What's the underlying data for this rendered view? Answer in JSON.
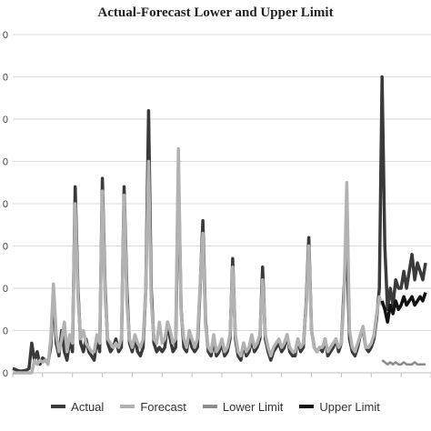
{
  "chart_data": {
    "type": "line",
    "title": "Actual-Forecast Lower and Upper Limit",
    "xlabel": "",
    "ylabel": "",
    "ytick_labels": [
      "0",
      "0",
      "0",
      "0",
      "0",
      "0",
      "0",
      "0",
      "0"
    ],
    "grid": true,
    "legend_position": "bottom",
    "series": [
      {
        "name": "Actual",
        "color": "#3a3a3a",
        "x": [
          1,
          2,
          3,
          4,
          5,
          6,
          7,
          8,
          9,
          10,
          11,
          12,
          13,
          14,
          15,
          16,
          17,
          18,
          19,
          20,
          21,
          22,
          23,
          24,
          25,
          26,
          27,
          28,
          29,
          30,
          31,
          32,
          33,
          34,
          35,
          36,
          37,
          38,
          39,
          40,
          41,
          42,
          43,
          44,
          45,
          46,
          47,
          48,
          49,
          50,
          51,
          52,
          53,
          54,
          55,
          56,
          57,
          58,
          59,
          60,
          61,
          62,
          63,
          64,
          65,
          66,
          67,
          68,
          69,
          70,
          71,
          72,
          73,
          74,
          75,
          76,
          77,
          78,
          79,
          80,
          81,
          82,
          83,
          84,
          85,
          86,
          87,
          88,
          89,
          90,
          91,
          92,
          93,
          94,
          95,
          96,
          97,
          98,
          99,
          100,
          101,
          102,
          103,
          104,
          105,
          106,
          107,
          108,
          109,
          110,
          111,
          112,
          113,
          114,
          115,
          116,
          117,
          118,
          119,
          120,
          121,
          122,
          123,
          124,
          125,
          126,
          127,
          128,
          129,
          130,
          131,
          132,
          133,
          134,
          135,
          136,
          137,
          138,
          139,
          140,
          141,
          142,
          143,
          144,
          145,
          146,
          147,
          148,
          149,
          150,
          151,
          152,
          153
        ],
        "y": [
          0.1,
          0.08,
          0.05,
          0.04,
          0.05,
          0.06,
          0.1,
          0.7,
          0.3,
          0.5,
          0.2,
          0.35,
          0.3,
          0.25,
          0.6,
          1.9,
          0.7,
          0.4,
          1.0,
          0.5,
          0.3,
          0.8,
          0.5,
          4.4,
          2.0,
          0.7,
          0.5,
          0.8,
          0.5,
          0.4,
          0.3,
          0.8,
          0.5,
          4.6,
          2.0,
          0.7,
          0.5,
          0.6,
          0.8,
          0.5,
          0.6,
          4.4,
          2.0,
          0.7,
          0.5,
          0.8,
          0.5,
          0.4,
          0.6,
          2.0,
          6.2,
          2.0,
          0.7,
          0.5,
          0.6,
          0.5,
          0.6,
          1.2,
          0.8,
          0.5,
          0.6,
          4.8,
          1.5,
          0.6,
          0.5,
          0.9,
          0.6,
          0.5,
          0.6,
          2.0,
          3.6,
          1.2,
          0.5,
          0.4,
          0.8,
          0.4,
          0.5,
          0.7,
          0.4,
          0.5,
          0.8,
          2.7,
          0.8,
          0.4,
          0.3,
          0.7,
          0.4,
          0.5,
          0.8,
          0.5,
          0.6,
          0.8,
          2.5,
          0.8,
          0.5,
          0.3,
          0.5,
          0.6,
          0.7,
          0.5,
          0.6,
          0.9,
          0.5,
          0.4,
          0.4,
          0.8,
          0.5,
          0.6,
          1.6,
          3.2,
          1.0,
          0.6,
          0.5,
          0.6,
          0.5,
          0.8,
          0.4,
          0.5,
          0.6,
          0.8,
          0.5,
          0.7,
          2.0,
          3.0,
          0.8,
          0.5,
          0.4,
          0.6,
          0.9,
          1.0,
          0.6,
          0.5,
          0.6,
          0.8,
          1.3,
          2.0,
          7.0,
          3.0,
          1.5,
          2.0,
          1.6,
          2.2,
          2.0,
          2.0,
          2.4,
          2.0,
          2.4,
          2.8,
          2.2,
          2.6,
          2.4,
          2.2,
          2.6
        ]
      },
      {
        "name": "Forecast",
        "color": "#b2b2b2",
        "x": [
          1,
          2,
          3,
          4,
          5,
          6,
          7,
          8,
          9,
          10,
          11,
          12,
          13,
          14,
          15,
          16,
          17,
          18,
          19,
          20,
          21,
          22,
          23,
          24,
          25,
          26,
          27,
          28,
          29,
          30,
          31,
          32,
          33,
          34,
          35,
          36,
          37,
          38,
          39,
          40,
          41,
          42,
          43,
          44,
          45,
          46,
          47,
          48,
          49,
          50,
          51,
          52,
          53,
          54,
          55,
          56,
          57,
          58,
          59,
          60,
          61,
          62,
          63,
          64,
          65,
          66,
          67,
          68,
          69,
          70,
          71,
          72,
          73,
          74,
          75,
          76,
          77,
          78,
          79,
          80,
          81,
          82,
          83,
          84,
          85,
          86,
          87,
          88,
          89,
          90,
          91,
          92,
          93,
          94,
          95,
          96,
          97,
          98,
          99,
          100,
          101,
          102,
          103,
          104,
          105,
          106,
          107,
          108,
          109,
          110,
          111,
          112,
          113,
          114,
          115,
          116,
          117,
          118,
          119,
          120,
          121,
          122,
          123,
          124,
          125,
          126,
          127,
          128,
          129,
          130,
          131,
          132,
          133,
          134,
          135,
          136,
          137
        ],
        "y": [
          0,
          0,
          0,
          0,
          0,
          0,
          0,
          0,
          0.3,
          0.2,
          0.3,
          0.25,
          0.3,
          0.2,
          0.8,
          2.1,
          0.9,
          0.5,
          0.8,
          1.2,
          0.5,
          0.9,
          0.7,
          4.0,
          1.8,
          0.8,
          1.0,
          0.7,
          0.6,
          0.5,
          0.5,
          0.9,
          0.7,
          4.3,
          1.8,
          0.8,
          0.7,
          0.6,
          0.7,
          0.6,
          0.8,
          4.2,
          1.7,
          0.8,
          0.6,
          0.9,
          0.7,
          0.6,
          0.8,
          2.0,
          5.0,
          1.7,
          0.8,
          0.7,
          1.2,
          0.7,
          0.8,
          1.2,
          1.0,
          0.7,
          0.8,
          5.3,
          1.4,
          0.8,
          0.6,
          1.0,
          0.8,
          0.6,
          0.8,
          2.1,
          3.3,
          1.1,
          0.6,
          0.5,
          0.9,
          0.5,
          0.6,
          0.8,
          0.5,
          0.6,
          0.9,
          2.5,
          0.9,
          0.5,
          0.4,
          0.7,
          0.5,
          0.6,
          0.9,
          0.6,
          0.7,
          0.9,
          2.2,
          0.9,
          0.6,
          0.4,
          0.6,
          0.7,
          0.8,
          0.6,
          0.7,
          0.9,
          0.6,
          0.5,
          0.5,
          0.8,
          0.6,
          0.7,
          1.5,
          3.0,
          1.0,
          0.6,
          0.5,
          0.6,
          0.6,
          0.8,
          0.5,
          0.6,
          0.7,
          0.8,
          0.6,
          0.7,
          1.8,
          4.5,
          1.0,
          0.6,
          0.5,
          0.7,
          0.9,
          1.1,
          0.6,
          0.6,
          0.7,
          0.9,
          1.4,
          1.8,
          1.6
        ]
      },
      {
        "name": "Lower Limit",
        "color": "#8c8c8c",
        "x": [
          137,
          138,
          139,
          140,
          141,
          142,
          143,
          144,
          145,
          146,
          147,
          148,
          149,
          150,
          151,
          152,
          153
        ],
        "y": [
          0.3,
          0.25,
          0.2,
          0.25,
          0.2,
          0.25,
          0.2,
          0.2,
          0.25,
          0.2,
          0.2,
          0.2,
          0.25,
          0.2,
          0.2,
          0.2,
          0.2
        ]
      },
      {
        "name": "Upper Limit",
        "color": "#111111",
        "x": [
          137,
          138,
          139,
          140,
          141,
          142,
          143,
          144,
          145,
          146,
          147,
          148,
          149,
          150,
          151,
          152,
          153
        ],
        "y": [
          1.7,
          1.5,
          1.2,
          1.6,
          1.4,
          1.7,
          1.5,
          1.6,
          1.8,
          1.6,
          1.7,
          1.8,
          1.6,
          1.7,
          1.8,
          1.7,
          1.9
        ]
      }
    ],
    "xlim": [
      1,
      155
    ],
    "ylim": [
      0,
      8
    ]
  }
}
